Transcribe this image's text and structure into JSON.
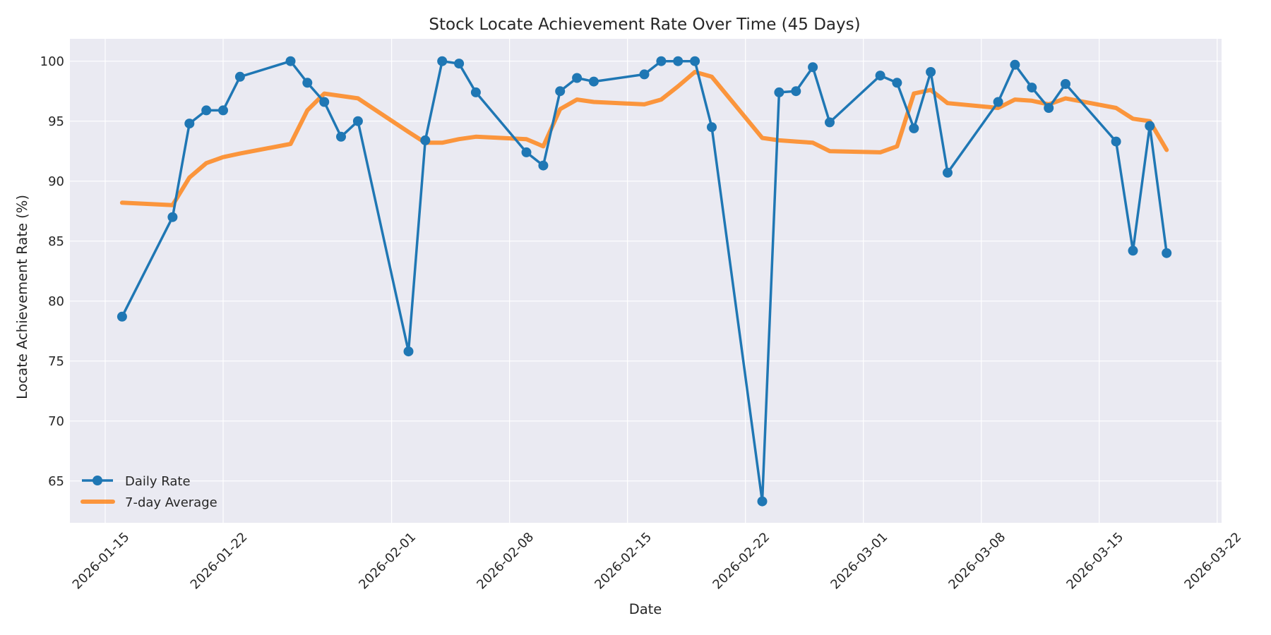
{
  "chart_data": {
    "type": "line",
    "title": "Stock Locate Achievement Rate Over Time (45 Days)",
    "xlabel": "Date",
    "ylabel": "Locate Achievement Rate (%)",
    "ylim": [
      61.5,
      101.8
    ],
    "xlim": [
      "2026-01-13",
      "2026-03-22"
    ],
    "grid": true,
    "legend_position": "lower left",
    "x_ticks": [
      "2026-01-15",
      "2026-01-22",
      "2026-02-01",
      "2026-02-08",
      "2026-02-15",
      "2026-02-22",
      "2026-03-01",
      "2026-03-08",
      "2026-03-15",
      "2026-03-22"
    ],
    "y_ticks": [
      65,
      70,
      75,
      80,
      85,
      90,
      95,
      100
    ],
    "x": [
      "2026-01-16",
      "2026-01-19",
      "2026-01-20",
      "2026-01-21",
      "2026-01-22",
      "2026-01-23",
      "2026-01-26",
      "2026-01-27",
      "2026-01-28",
      "2026-01-29",
      "2026-01-30",
      "2026-02-02",
      "2026-02-03",
      "2026-02-04",
      "2026-02-05",
      "2026-02-06",
      "2026-02-09",
      "2026-02-10",
      "2026-02-11",
      "2026-02-12",
      "2026-02-13",
      "2026-02-16",
      "2026-02-17",
      "2026-02-18",
      "2026-02-19",
      "2026-02-20",
      "2026-02-23",
      "2026-02-24",
      "2026-02-25",
      "2026-02-26",
      "2026-02-27",
      "2026-03-02",
      "2026-03-03",
      "2026-03-04",
      "2026-03-05",
      "2026-03-06",
      "2026-03-09",
      "2026-03-10",
      "2026-03-11",
      "2026-03-12",
      "2026-03-13",
      "2026-03-16",
      "2026-03-17",
      "2026-03-18",
      "2026-03-19"
    ],
    "series": [
      {
        "name": "Daily Rate",
        "color": "#1f77b4",
        "marker": "circle",
        "values": [
          78.7,
          87.0,
          94.8,
          95.9,
          95.9,
          98.7,
          100.0,
          98.2,
          96.6,
          93.7,
          95.0,
          75.8,
          93.4,
          100.0,
          99.8,
          97.4,
          92.4,
          91.3,
          97.5,
          98.6,
          98.3,
          98.9,
          100.0,
          100.0,
          100.0,
          94.5,
          63.3,
          97.4,
          97.5,
          99.5,
          94.9,
          98.8,
          98.2,
          94.4,
          99.1,
          90.7,
          96.6,
          99.7,
          97.8,
          96.1,
          98.1,
          93.3,
          84.2,
          94.6,
          84.0
        ]
      },
      {
        "name": "7-day Average",
        "color": "#ff7f0e",
        "marker": "none",
        "values": [
          88.2,
          88.0,
          90.3,
          91.5,
          92.0,
          92.3,
          93.1,
          95.9,
          97.3,
          97.1,
          96.9,
          94.1,
          93.2,
          93.2,
          93.5,
          93.7,
          93.5,
          92.9,
          96.0,
          96.8,
          96.6,
          96.4,
          96.8,
          97.9,
          99.1,
          98.7,
          93.6,
          93.4,
          93.3,
          93.2,
          92.5,
          92.4,
          92.9,
          97.3,
          97.6,
          96.5,
          96.1,
          96.8,
          96.7,
          96.4,
          96.9,
          96.1,
          95.2,
          95.0,
          92.6
        ]
      }
    ]
  },
  "colors": {
    "plot_background": "#eaeaf2",
    "grid": "#ffffff",
    "daily": "#1f77b4",
    "average": "#ff7f0e"
  }
}
